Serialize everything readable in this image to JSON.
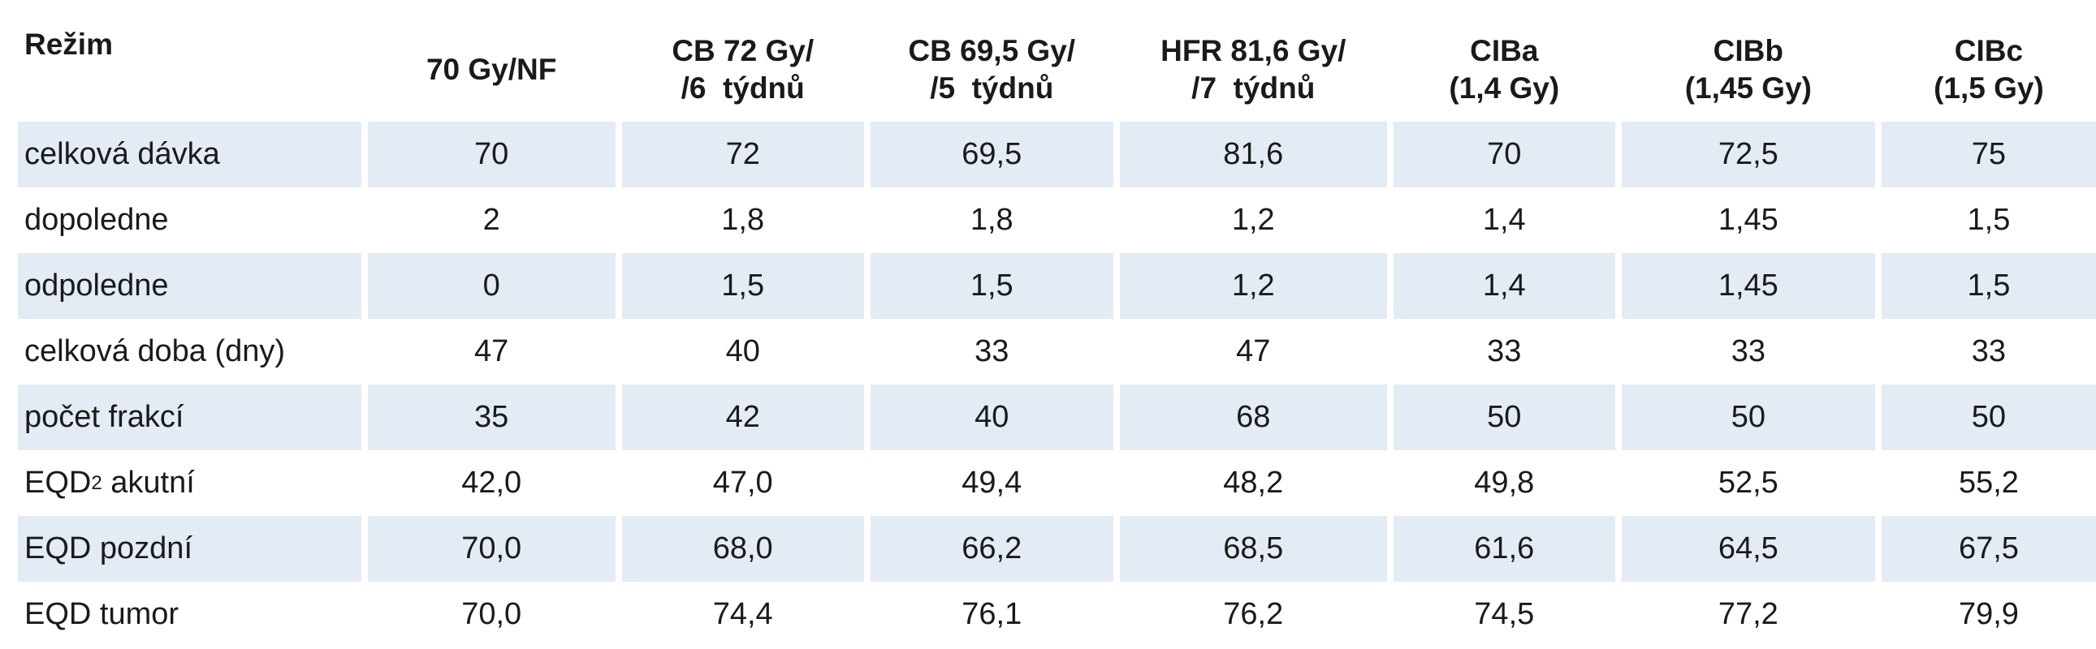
{
  "header": {
    "regime": "Režim",
    "col1": [
      "70 Gy/NF"
    ],
    "col2": [
      "CB 72 Gy/",
      "/6  týdnů"
    ],
    "col3": [
      "CB 69,5 Gy/",
      "/5  týdnů"
    ],
    "col4": [
      "HFR 81,6 Gy/",
      "/7  týdnů"
    ],
    "col5": [
      "CIBa",
      "(1,4 Gy)"
    ],
    "col6": [
      "CIBb",
      "(1,45 Gy)"
    ],
    "col7": [
      "CIBc",
      "(1,5 Gy)"
    ]
  },
  "rows": [
    {
      "label": "celková dávka",
      "values": [
        "70",
        "72",
        "69,5",
        "81,6",
        "70",
        "72,5",
        "75"
      ]
    },
    {
      "label": "dopoledne",
      "values": [
        "2",
        "1,8",
        "1,8",
        "1,2",
        "1,4",
        "1,45",
        "1,5"
      ]
    },
    {
      "label": "odpoledne",
      "values": [
        "0",
        "1,5",
        "1,5",
        "1,2",
        "1,4",
        "1,45",
        "1,5"
      ]
    },
    {
      "label": "celková doba (dny)",
      "values": [
        "47",
        "40",
        "33",
        "47",
        "33",
        "33",
        "33"
      ]
    },
    {
      "label": "počet frakcí",
      "values": [
        "35",
        "42",
        "40",
        "68",
        "50",
        "50",
        "50"
      ]
    },
    {
      "label_main": "EQD",
      "label_sub": "2",
      "label_rest": " akutní",
      "values": [
        "42,0",
        "47,0",
        "49,4",
        "48,2",
        "49,8",
        "52,5",
        "55,2"
      ]
    },
    {
      "label": "EQD pozdní",
      "values": [
        "70,0",
        "68,0",
        "66,2",
        "68,5",
        "61,6",
        "64,5",
        "67,5"
      ]
    },
    {
      "label": "EQD tumor",
      "values": [
        "70,0",
        "74,4",
        "76,1",
        "76,2",
        "74,5",
        "77,2",
        "79,9"
      ]
    }
  ]
}
